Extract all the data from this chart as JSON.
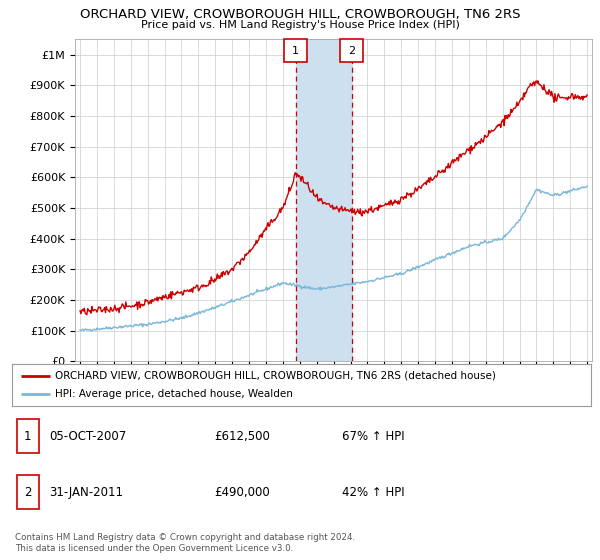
{
  "title": "ORCHARD VIEW, CROWBOROUGH HILL, CROWBOROUGH, TN6 2RS",
  "subtitle": "Price paid vs. HM Land Registry's House Price Index (HPI)",
  "ylabel_ticks": [
    "£0",
    "£100K",
    "£200K",
    "£300K",
    "£400K",
    "£500K",
    "£600K",
    "£700K",
    "£800K",
    "£900K",
    "£1M"
  ],
  "ytick_values": [
    0,
    100000,
    200000,
    300000,
    400000,
    500000,
    600000,
    700000,
    800000,
    900000,
    1000000
  ],
  "ylim": [
    0,
    1050000
  ],
  "xlim_start": 1994.7,
  "xlim_end": 2025.3,
  "xtick_years": [
    1995,
    1996,
    1997,
    1998,
    1999,
    2000,
    2001,
    2002,
    2003,
    2004,
    2005,
    2006,
    2007,
    2008,
    2009,
    2010,
    2011,
    2012,
    2013,
    2014,
    2015,
    2016,
    2017,
    2018,
    2019,
    2020,
    2021,
    2022,
    2023,
    2024,
    2025
  ],
  "hpi_color": "#7ab8d9",
  "price_color": "#cc0000",
  "sale1_x": 2007.76,
  "sale1_y": 612500,
  "sale2_x": 2011.08,
  "sale2_y": 490000,
  "highlight_color": "#cce0f0",
  "vline_color": "#cc0000",
  "legend_line1": "ORCHARD VIEW, CROWBOROUGH HILL, CROWBOROUGH, TN6 2RS (detached house)",
  "legend_line2": "HPI: Average price, detached house, Wealden",
  "table_row1": [
    "1",
    "05-OCT-2007",
    "£612,500",
    "67% ↑ HPI"
  ],
  "table_row2": [
    "2",
    "31-JAN-2011",
    "£490,000",
    "42% ↑ HPI"
  ],
  "footnote": "Contains HM Land Registry data © Crown copyright and database right 2024.\nThis data is licensed under the Open Government Licence v3.0.",
  "background_color": "#ffffff",
  "grid_color": "#cccccc"
}
